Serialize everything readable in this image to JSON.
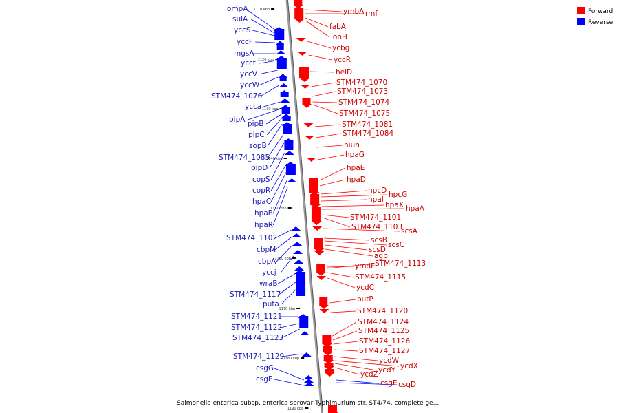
{
  "caption": "Salmonella enterica subsp. enterica serovar Typhimurium str. ST4/74, complete ge...",
  "colors": {
    "forward": "#ff0000",
    "reverse": "#0000ff",
    "backbone": "#999999"
  },
  "legend": [
    {
      "label": "Forward",
      "color": "#ff0000"
    },
    {
      "label": "Reverse",
      "color": "#0000ff"
    }
  ],
  "kbp_ticks": [
    "1110 kbp",
    "1120 kbp",
    "1130 kbp",
    "1140 kbp",
    "1150 kbp",
    "1160 kbp",
    "1170 kbp",
    "1180 kbp",
    "1190 kbp"
  ],
  "reverse_genes": [
    "ompA",
    "sulA",
    "yccS",
    "yccF",
    "mgsA",
    "ycct",
    "yccV",
    "yccW",
    "STM474_1076",
    "ycca",
    "pipA",
    "pipB",
    "pipC",
    "sopB",
    "STM474_1085",
    "pipD",
    "copS",
    "copR",
    "hpaC",
    "hpaB",
    "hpaR",
    "STM474_1102",
    "cbpM",
    "cbpA",
    "yccj",
    "wraB",
    "STM474_1117",
    "puta",
    "STM474_1121",
    "STM474_1122",
    "STM474_1123",
    "STM474_1129",
    "csgG",
    "csgF"
  ],
  "forward_genes": [
    "ymbA",
    "rmf",
    "fabA",
    "lonH",
    "ycbg",
    "yccR",
    "helD",
    "STM474_1070",
    "STM474_1073",
    "STM474_1074",
    "STM474_1075",
    "STM474_1081",
    "STM474_1084",
    "hiuh",
    "hpaG",
    "hpaE",
    "hpaD",
    "hpcD",
    "hpcG",
    "hpaI",
    "hpaX",
    "hpaA",
    "STM474_1101",
    "STM474_1103",
    "scsA",
    "scsB",
    "scsC",
    "scsD",
    "agp",
    "ymdF",
    "STM474_1113",
    "STM474_1115",
    "ycdC",
    "putP",
    "STM474_1120",
    "STM474_1124",
    "STM474_1125",
    "STM474_1126",
    "STM474_1127",
    "ycdW",
    "ycdX",
    "ycdY",
    "ycdZ",
    "csgE",
    "csgD"
  ]
}
